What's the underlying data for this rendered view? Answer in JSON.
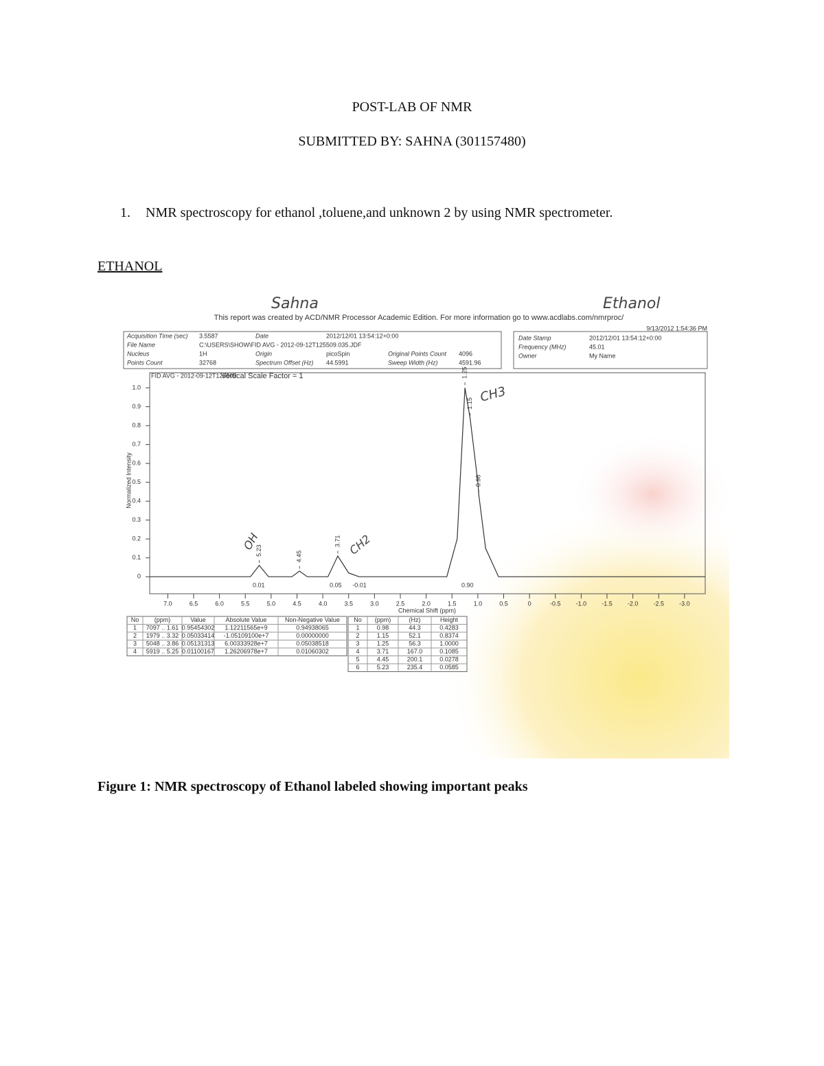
{
  "header": {
    "title": "POST-LAB OF NMR",
    "submitted": "SUBMITTED BY: SAHNA (301157480)"
  },
  "list": [
    {
      "number": "1.",
      "text": "NMR spectroscopy for ethanol ,toluene,and unknown 2 by using NMR spectrometer."
    }
  ],
  "section": "ETHANOL",
  "figure": {
    "handwritten": {
      "name": "Sahna",
      "sample": "Ethanol",
      "oh": "OH",
      "ch2": "CH2",
      "ch3": "CH3"
    },
    "report_note": "This report was created by ACD/NMR Processor Academic Edition. For more information go to www.acdlabs.com/nmrproc/",
    "timestamp": "9/13/2012 1:54:36 PM",
    "info": [
      [
        [
          "Acquisition Time (sec)",
          "3.5587"
        ],
        [
          "Date",
          "2012/12/01 13:54:12+0:00"
        ]
      ],
      [
        [
          "File Name",
          "C:\\USERS\\SHOW\\FID AVG - 2012-09-12T125509.035.JDF"
        ]
      ],
      [
        [
          "Nucleus",
          "1H"
        ],
        [
          "Origin",
          "picoSpin"
        ],
        [
          "Original Points Count",
          "4096"
        ]
      ],
      [
        [
          "Points Count",
          "32768"
        ],
        [
          "Spectrum Offset (Hz)",
          "44.5991"
        ],
        [
          "Sweep Width (Hz)",
          "4591.96"
        ]
      ]
    ],
    "info_side": [
      [
        "Date Stamp",
        "2012/12/01 13:54:12+0:00"
      ],
      [
        "Frequency (MHz)",
        "45.01"
      ],
      [
        "Owner",
        "My Name"
      ]
    ],
    "spectrum": {
      "plot_title": "FID AVG - 2012-09-12T125509",
      "scale_note": "Vertical Scale Factor = 1",
      "x_label": "Chemical Shift (ppm)",
      "y_label": "Normalized Intensity",
      "xlim": [
        7.35,
        -3.4
      ],
      "ylim": [
        -0.09,
        1.08
      ],
      "xticks": [
        {
          "value": 7,
          "label": "7.0"
        },
        6.5,
        {
          "value": 6,
          "label": "6.0"
        },
        5.5,
        {
          "value": 5,
          "label": "5.0"
        },
        4.5,
        {
          "value": 4,
          "label": "4.0"
        },
        3.5,
        {
          "value": 3,
          "label": "3.0"
        },
        2.5,
        {
          "value": 2,
          "label": "2.0"
        },
        1.5,
        {
          "value": 1,
          "label": "1.0"
        },
        0.5,
        0,
        -0.5,
        {
          "value": -1,
          "label": "-1.0"
        },
        -1.5,
        {
          "value": -2,
          "label": "-2.0"
        },
        -2.5,
        {
          "value": -3,
          "label": "-3.0"
        }
      ],
      "yticks": [
        0,
        0.1,
        0.2,
        0.3,
        0.4,
        0.5,
        0.6,
        0.7,
        0.8,
        0.9,
        {
          "value": 1,
          "label": "1.0"
        }
      ],
      "color": "#333333",
      "x": [
        7.35,
        5.4,
        5.23,
        5.05,
        4.6,
        4.45,
        4.3,
        3.9,
        3.71,
        3.5,
        3.3,
        1.6,
        1.4,
        1.25,
        1.15,
        1.0,
        0.98,
        0.85,
        0.6,
        -3.4
      ],
      "values": [
        0,
        0,
        0.06,
        0,
        0,
        0.03,
        0,
        0,
        0.11,
        0.02,
        0,
        0,
        0.2,
        1.0,
        0.84,
        0.5,
        0.43,
        0.15,
        0,
        0
      ],
      "peaks": [
        {
          "ppm": 1.25,
          "height": 1.0,
          "label": "1.25"
        },
        {
          "ppm": 1.15,
          "height": 0.8374,
          "label": "1.15"
        },
        {
          "ppm": 0.98,
          "height": 0.4283,
          "label": "0.98"
        },
        {
          "ppm": 3.71,
          "height": 0.1085,
          "label": "3.71"
        },
        {
          "ppm": 4.45,
          "height": 0.0278,
          "label": "4.45"
        },
        {
          "ppm": 5.23,
          "height": 0.0585,
          "label": "5.23"
        }
      ],
      "integrals": {
        "ppm": [
          5.24,
          3.75,
          3.29,
          1.2
        ],
        "values": [
          0.01,
          0.05,
          -0.01,
          0.9
        ],
        "value_labels": [
          "0.01",
          "0.05",
          "-0.01",
          "0.90"
        ]
      }
    },
    "integral_table": {
      "headers": [
        "No",
        "(ppm)",
        "Value",
        "Absolute Value",
        "Non-Negative Value"
      ],
      "rows": [
        [
          "1",
          "7097 .. 1.61",
          "0.95454302",
          "1.12211565e+9",
          "0.94938065"
        ],
        [
          "2",
          "1979 .. 3.32",
          "0.05033414",
          "-1.05109100e+7",
          "0.00000000"
        ],
        [
          "3",
          "5048 .. 3.86",
          "0.05131313",
          "6.00333928e+7",
          "0.05038518"
        ],
        [
          "4",
          "5919 .. 5.25",
          "0.01100167",
          "1.26206978e+7",
          "0.01060302"
        ]
      ]
    },
    "peak_table": {
      "headers": [
        "No",
        "(ppm)",
        "(Hz)",
        "Height"
      ],
      "rows": [
        [
          "1",
          "0.98",
          "44.3",
          "0.4283"
        ],
        [
          "2",
          "1.15",
          "52.1",
          "0.8374"
        ],
        [
          "3",
          "1.25",
          "56.3",
          "1.0000"
        ],
        [
          "4",
          "3.71",
          "167.0",
          "0.1085"
        ],
        [
          "5",
          "4.45",
          "200.1",
          "0.0278"
        ],
        [
          "6",
          "5.23",
          "235.4",
          "0.0585"
        ]
      ]
    },
    "caption": "Figure 1: NMR spectroscopy of Ethanol labeled showing important peaks"
  }
}
